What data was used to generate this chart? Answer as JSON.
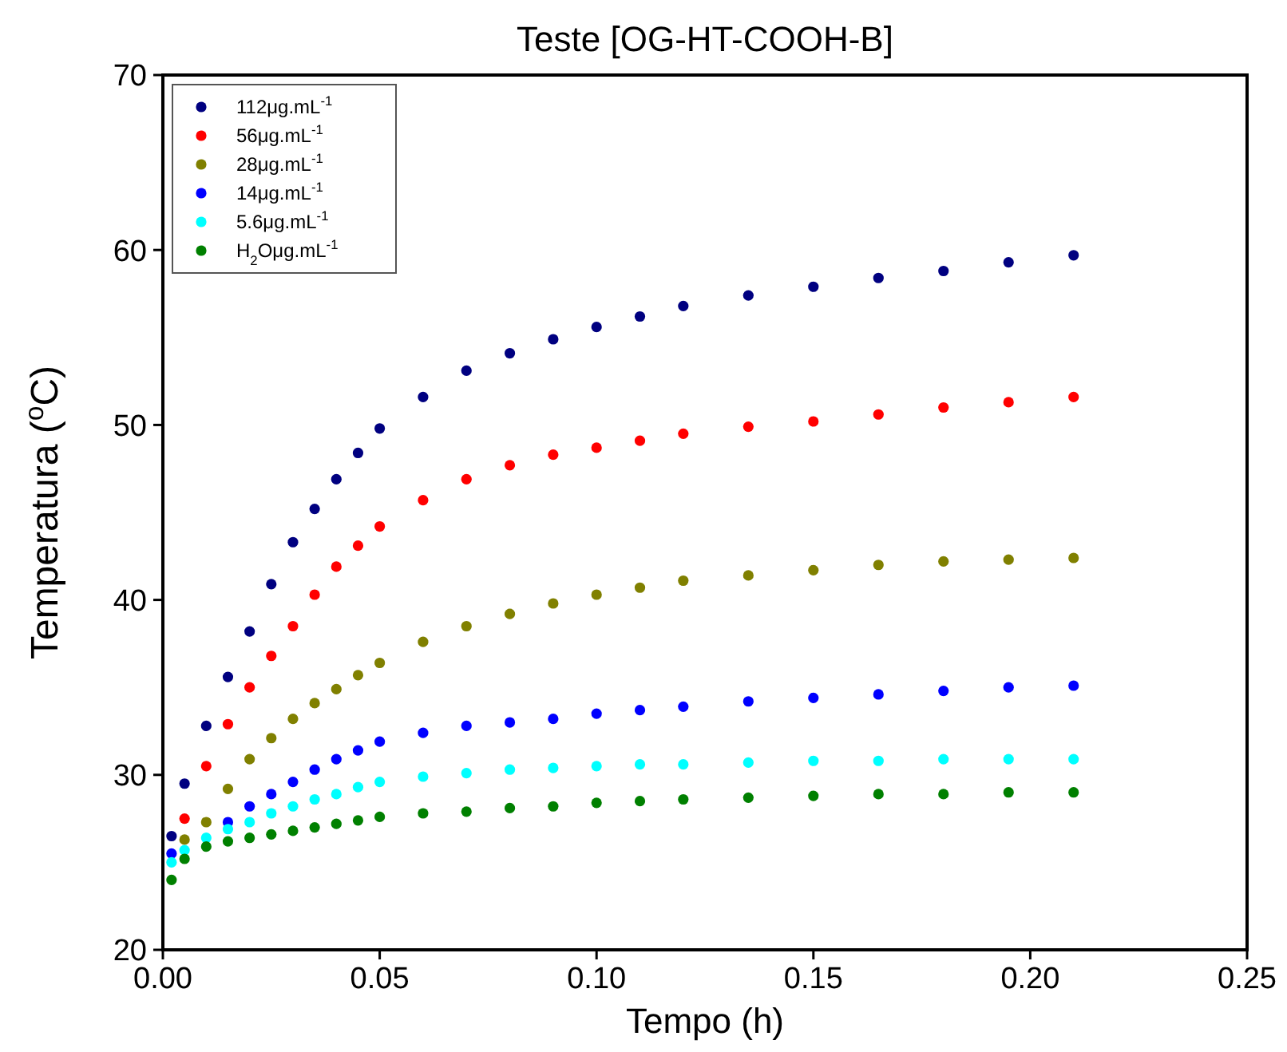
{
  "chart_data": {
    "type": "scatter",
    "title": "Teste [OG-HT-COOH-B]",
    "xlabel": "Tempo (h)",
    "ylabel": "Temperatura ($^{o}$C)",
    "x": [
      0.002,
      0.005,
      0.01,
      0.015,
      0.02,
      0.025,
      0.03,
      0.035,
      0.04,
      0.045,
      0.05,
      0.06,
      0.07,
      0.08,
      0.09,
      0.1,
      0.11,
      0.12,
      0.135,
      0.15,
      0.165,
      0.18,
      0.195,
      0.21
    ],
    "series": [
      {
        "name": "112μg.mL$^{-1}$",
        "color": "#000080",
        "values": [
          26.5,
          29.5,
          32.8,
          35.6,
          38.2,
          40.9,
          43.3,
          45.2,
          46.9,
          48.4,
          49.8,
          51.6,
          53.1,
          54.1,
          54.9,
          55.6,
          56.2,
          56.8,
          57.4,
          57.9,
          58.4,
          58.8,
          59.3,
          59.7
        ]
      },
      {
        "name": "56μg.mL$^{-1}$",
        "color": "#ff0000",
        "values": [
          null,
          27.5,
          30.5,
          32.9,
          35.0,
          36.8,
          38.5,
          40.3,
          41.9,
          43.1,
          44.2,
          45.7,
          46.9,
          47.7,
          48.3,
          48.7,
          49.1,
          49.5,
          49.9,
          50.2,
          50.6,
          51.0,
          51.3,
          51.6
        ]
      },
      {
        "name": "28μg.mL$^{-1}$",
        "color": "#808000",
        "values": [
          null,
          26.3,
          27.3,
          29.2,
          30.9,
          32.1,
          33.2,
          34.1,
          34.9,
          35.7,
          36.4,
          37.6,
          38.5,
          39.2,
          39.8,
          40.3,
          40.7,
          41.1,
          41.4,
          41.7,
          42.0,
          42.2,
          42.3,
          42.4
        ]
      },
      {
        "name": "14μg.mL$^{-1}$",
        "color": "#0000ff",
        "values": [
          25.5,
          null,
          null,
          27.3,
          28.2,
          28.9,
          29.6,
          30.3,
          30.9,
          31.4,
          31.9,
          32.4,
          32.8,
          33.0,
          33.2,
          33.5,
          33.7,
          33.9,
          34.2,
          34.4,
          34.6,
          34.8,
          35.0,
          35.1
        ]
      },
      {
        "name": "5.6μg.mL$^{-1}$",
        "color": "#00ffff",
        "values": [
          25.0,
          25.7,
          26.4,
          26.9,
          27.3,
          27.8,
          28.2,
          28.6,
          28.9,
          29.3,
          29.6,
          29.9,
          30.1,
          30.3,
          30.4,
          30.5,
          30.6,
          30.6,
          30.7,
          30.8,
          30.8,
          30.9,
          30.9,
          30.9
        ]
      },
      {
        "name": "H$_{2}$Oμg.mL$^{-1}$",
        "color": "#008000",
        "values": [
          24.0,
          25.2,
          25.9,
          26.2,
          26.4,
          26.6,
          26.8,
          27.0,
          27.2,
          27.4,
          27.6,
          27.8,
          27.9,
          28.1,
          28.2,
          28.4,
          28.5,
          28.6,
          28.7,
          28.8,
          28.9,
          28.9,
          29.0,
          29.0
        ]
      }
    ],
    "xlim": [
      0,
      0.25
    ],
    "xticks": [
      {
        "value": 0,
        "label": "0.00"
      },
      {
        "value": 0.05,
        "label": "0.05"
      },
      {
        "value": 0.1,
        "label": "0.10"
      },
      {
        "value": 0.15,
        "label": "0.15"
      },
      {
        "value": 0.2,
        "label": "0.20"
      },
      {
        "value": 0.25,
        "label": "0.25"
      }
    ],
    "ylim": [
      20,
      70
    ],
    "yticks": [
      20,
      30,
      40,
      50,
      60,
      70
    ],
    "legend": "top left",
    "marker": "circle",
    "grid": false
  }
}
